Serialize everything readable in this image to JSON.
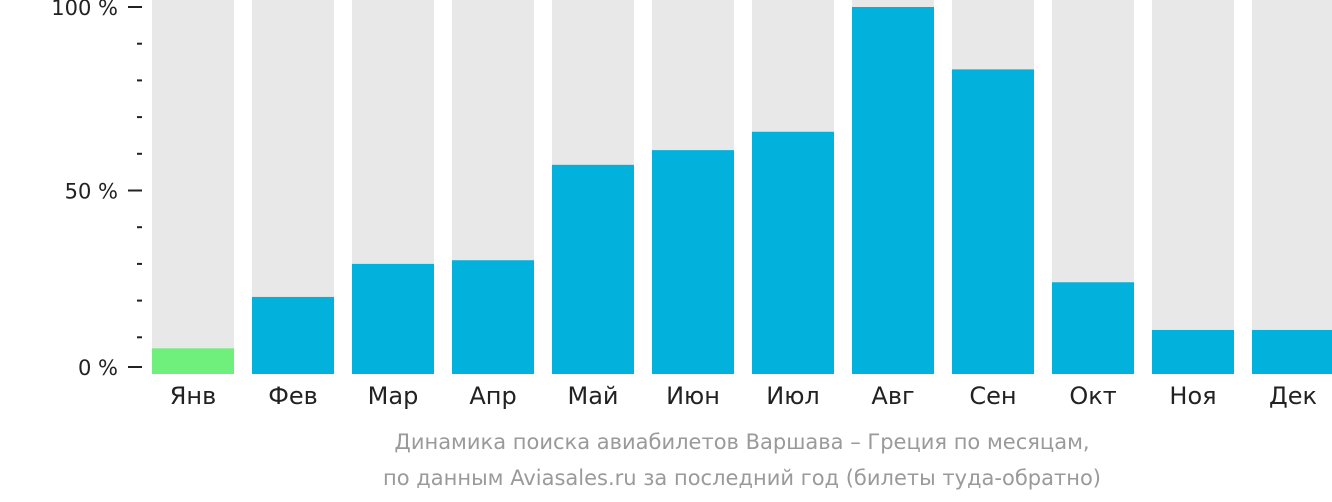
{
  "chart_data": {
    "type": "bar",
    "categories": [
      "Янв",
      "Фев",
      "Мар",
      "Апр",
      "Май",
      "Июн",
      "Июл",
      "Авг",
      "Сен",
      "Окт",
      "Ноя",
      "Дек"
    ],
    "values": [
      7,
      21,
      30,
      31,
      57,
      61,
      66,
      100,
      83,
      25,
      12,
      12
    ],
    "ylim": [
      0,
      100
    ],
    "y_ticks": [
      {
        "value": 0,
        "label": "0 %"
      },
      {
        "value": 50,
        "label": "50 %"
      },
      {
        "value": 100,
        "label": "100 %"
      }
    ],
    "minor_tick_step": 10,
    "highlight_index": 0,
    "colors": {
      "bar": "#02b1dc",
      "highlight": "#6ff07c",
      "background_bar": "#e8e8e8",
      "axis": "#222222"
    },
    "caption": [
      "Динамика поиска авиабилетов Варшава – Греция по месяцам,",
      "по данным Aviasales.ru за последний год (билеты туда-обратно)"
    ]
  }
}
